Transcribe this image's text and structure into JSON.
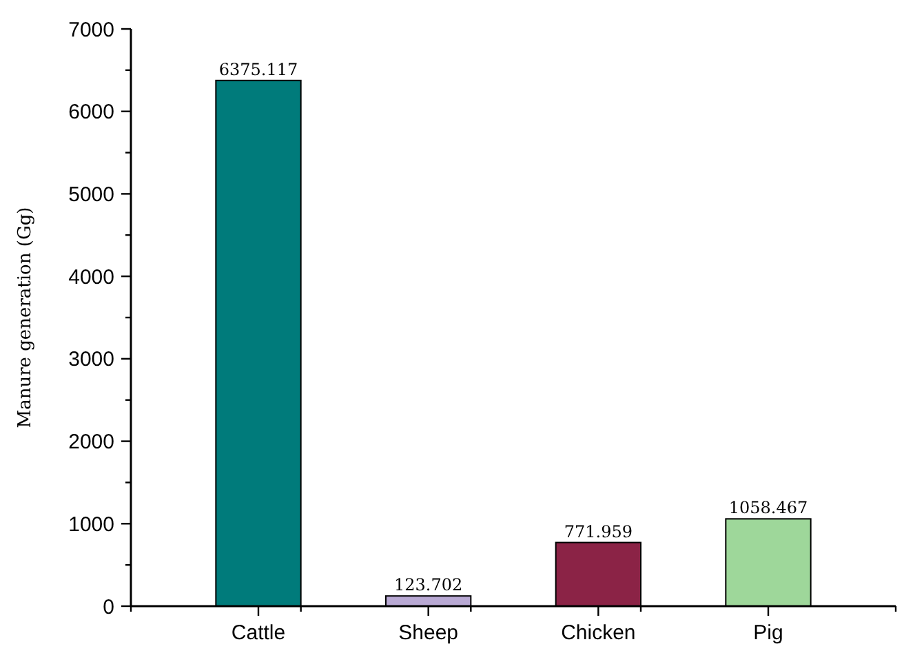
{
  "chart_data": {
    "type": "bar",
    "ylabel": "Manure generation (Gg)",
    "categories": [
      "Cattle",
      "Sheep",
      "Chicken",
      "Pig"
    ],
    "values": [
      6375.117,
      123.702,
      771.959,
      1058.467
    ],
    "colors": [
      "#007b7b",
      "#b9a9d4",
      "#8b2346",
      "#9ed79a"
    ],
    "ylim": [
      0,
      7000
    ],
    "yticks": [
      0,
      {
        "value": 500,
        "label": null
      },
      1000,
      {
        "value": 1500,
        "label": null
      },
      2000,
      {
        "value": 2500,
        "label": null
      },
      3000,
      {
        "value": 3500,
        "label": null
      },
      4000,
      {
        "value": 4500,
        "label": null
      },
      5000,
      {
        "value": 5500,
        "label": null
      },
      6000,
      {
        "value": 6500,
        "label": null
      },
      7000
    ],
    "data_labels": true,
    "grid": false
  }
}
